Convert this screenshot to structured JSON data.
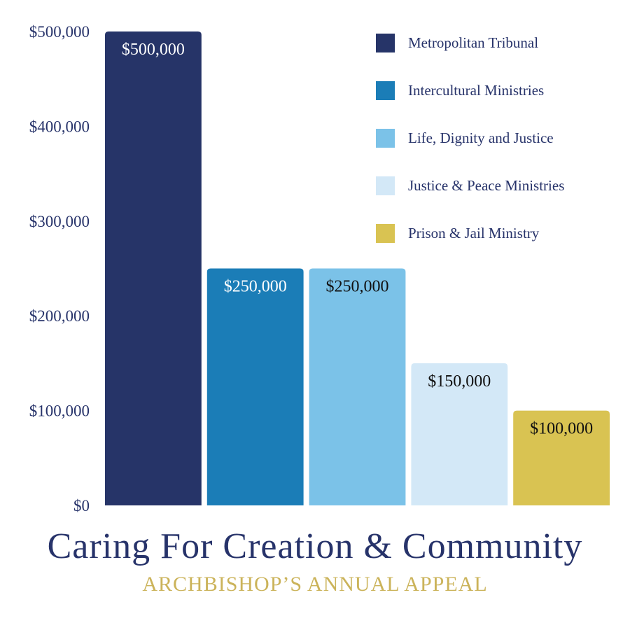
{
  "chart_data": {
    "type": "bar",
    "title": "Caring For Creation & Community",
    "subtitle": "ARCHBISHOP’S ANNUAL APPEAL",
    "categories": [
      "Metropolitan Tribunal",
      "Intercultural Ministries",
      "Life, Dignity and Justice",
      "Justice & Peace Ministries",
      "Prison & Jail Ministry"
    ],
    "values": [
      500000,
      250000,
      250000,
      150000,
      100000
    ],
    "data_labels": [
      "$500,000",
      "$250,000",
      "$250,000",
      "$150,000",
      "$100,000"
    ],
    "colors": [
      "#263468",
      "#1b7db7",
      "#7bc2e8",
      "#d3e8f7",
      "#d9c352"
    ],
    "data_label_colors": [
      "#ffffff",
      "#ffffff",
      "#111111",
      "#111111",
      "#111111"
    ],
    "ylim": [
      0,
      500000
    ],
    "yticks": [
      0,
      100000,
      200000,
      300000,
      400000,
      500000
    ],
    "ytick_labels": [
      "$0",
      "$100,000",
      "$200,000",
      "$300,000",
      "$400,000",
      "$500,000"
    ],
    "xlabel": "",
    "ylabel": "",
    "grid": false,
    "legend": {
      "position": "top-right",
      "entries": [
        "Metropolitan Tribunal",
        "Intercultural Ministries",
        "Life, Dignity and Justice",
        "Justice & Peace Ministries",
        "Prison & Jail Ministry"
      ]
    }
  }
}
